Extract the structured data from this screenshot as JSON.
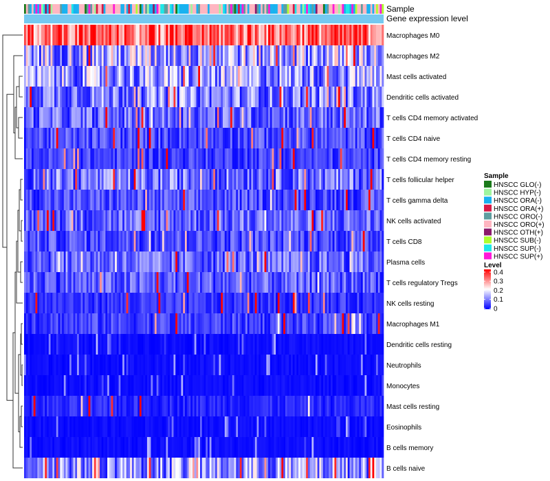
{
  "chart_data": {
    "type": "heatmap",
    "title": "",
    "annotation_labels": [
      "Sample",
      "Gene expression level"
    ],
    "rows": [
      "Macrophages M0",
      "Macrophages M2",
      "Mast cells activated",
      "Dendritic cells activated",
      "T cells CD4 memory activated",
      "T cells CD4 naive",
      "T cells CD4 memory resting",
      "T cells follicular helper",
      "T cells gamma delta",
      "NK cells activated",
      "T cells CD8",
      "Plasma cells",
      "T cells regulatory  Tregs",
      "NK cells resting",
      "Macrophages M1",
      "Dendritic cells resting",
      "Neutrophils",
      "Monocytes",
      "Mast cells resting",
      "Eosinophils",
      "B cells memory",
      "B cells naive"
    ],
    "row_mean_level": [
      0.33,
      0.14,
      0.12,
      0.1,
      0.08,
      0.06,
      0.05,
      0.09,
      0.06,
      0.08,
      0.06,
      0.08,
      0.07,
      0.04,
      0.05,
      0.02,
      0.02,
      0.02,
      0.03,
      0.01,
      0.01,
      0.12
    ],
    "n_samples": 190,
    "sample_legend": {
      "title": "Sample",
      "items": [
        {
          "label": "HNSCC GLO(-)",
          "color": "#1a7a1a"
        },
        {
          "label": "HNSCC HYP(-)",
          "color": "#9ff59f"
        },
        {
          "label": "HNSCC ORA(-)",
          "color": "#19b2f0"
        },
        {
          "label": "HNSCC ORA(+)",
          "color": "#d81b47"
        },
        {
          "label": "HNSCC ORO(-)",
          "color": "#5f9ea0"
        },
        {
          "label": "HNSCC ORO(+)",
          "color": "#ffb6c1"
        },
        {
          "label": "HNSCC OTH(+)",
          "color": "#8b1a6b"
        },
        {
          "label": "HNSCC SUB(-)",
          "color": "#adff2f"
        },
        {
          "label": "HNSCC SUP(-)",
          "color": "#1ee8e8"
        },
        {
          "label": "HNSCC SUP(+)",
          "color": "#ff19d9"
        }
      ]
    },
    "level_legend": {
      "title": "Level",
      "range": [
        0,
        0.4
      ],
      "ticks": [
        "0.4",
        "0.3",
        "0.2",
        "0.1",
        "0"
      ],
      "colors": {
        "low": "#0000ff",
        "mid": "#ffffff",
        "high": "#ff0000"
      }
    },
    "gene_expression_color": "#75c8f0"
  }
}
